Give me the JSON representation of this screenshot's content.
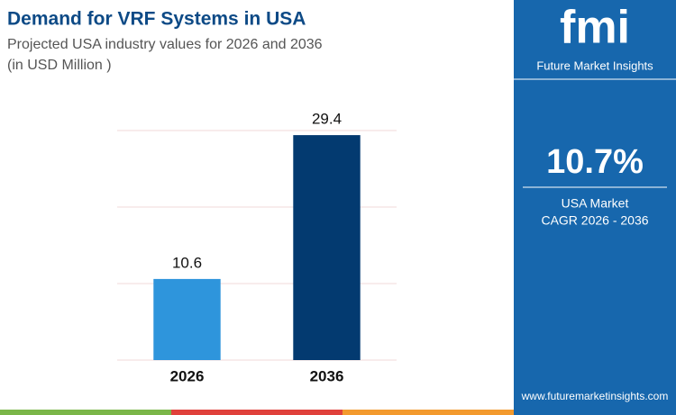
{
  "chart_data": {
    "type": "bar",
    "title": "Demand for VRF Systems in USA",
    "subtitle": "Projected USA industry values for 2026 and 2036",
    "unit_note": "(in USD Million )",
    "categories": [
      "2026",
      "2036"
    ],
    "values": [
      10.6,
      29.4
    ],
    "colors": [
      "#2e95dc",
      "#033a70"
    ],
    "ylim": [
      0,
      30
    ],
    "yticks": [
      0,
      10,
      20,
      30
    ],
    "grid": true
  },
  "sidebar": {
    "logo": "fmi",
    "brand": "Future Market Insights",
    "cagr": "10.7%",
    "cagr_label_1": "USA Market",
    "cagr_label_2": "CAGR 2026 - 2036",
    "website": "www.futuremarketinsights.com"
  }
}
